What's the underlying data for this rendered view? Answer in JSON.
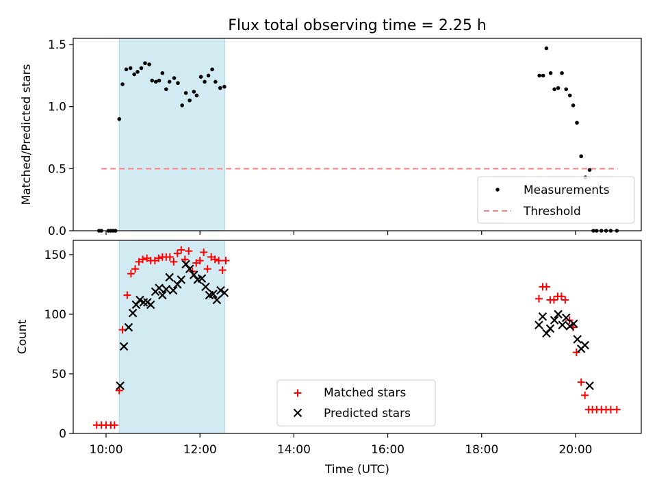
{
  "figure": {
    "title": "Flux total observing time = 2.25 h"
  },
  "colors": {
    "shade": "#add8e6",
    "threshold": "#ff7f7f",
    "matched": "#ff0000",
    "predicted": "#000000",
    "measurements": "#000000"
  },
  "chart_data": [
    {
      "type": "scatter",
      "ylabel": "Matched/Predicted stars",
      "xlabel": "",
      "ylim": [
        0,
        1.55
      ],
      "yticks": [
        0.0,
        0.5,
        1.0,
        1.5
      ],
      "ytick_labels": [
        "0.0",
        "0.5",
        "1.0",
        "1.5"
      ],
      "xlim": [
        9.3,
        21.4
      ],
      "shaded_interval": [
        10.28,
        12.53
      ],
      "legend": {
        "placement": "lower right",
        "entries": [
          "Measurements",
          "Threshold"
        ]
      },
      "threshold": {
        "name": "Threshold",
        "y": 0.5,
        "x": [
          9.9,
          20.9
        ]
      },
      "series": [
        {
          "name": "Measurements",
          "x": [
            9.85,
            9.9,
            10.05,
            10.1,
            10.15,
            10.2,
            10.28,
            10.35,
            10.43,
            10.52,
            10.6,
            10.67,
            10.75,
            10.83,
            10.92,
            10.98,
            11.06,
            11.13,
            11.2,
            11.28,
            11.35,
            11.45,
            11.53,
            11.62,
            11.7,
            11.78,
            11.87,
            11.93,
            12.02,
            12.1,
            12.18,
            12.26,
            12.33,
            12.43,
            12.52,
            19.23,
            19.31,
            19.38,
            19.47,
            19.55,
            19.63,
            19.71,
            19.8,
            19.88,
            19.95,
            20.03,
            20.12,
            20.21,
            20.3,
            20.38,
            20.45,
            20.55,
            20.65,
            20.75,
            20.88
          ],
          "y": [
            0.0,
            0.0,
            0.0,
            0.0,
            0.0,
            0.0,
            0.9,
            1.18,
            1.3,
            1.31,
            1.26,
            1.28,
            1.31,
            1.35,
            1.34,
            1.21,
            1.2,
            1.21,
            1.27,
            1.14,
            1.2,
            1.23,
            1.19,
            1.01,
            1.11,
            1.05,
            1.12,
            1.09,
            1.24,
            1.2,
            1.25,
            1.3,
            1.2,
            1.15,
            1.16,
            1.25,
            1.25,
            1.47,
            1.27,
            1.14,
            1.15,
            1.27,
            1.14,
            1.09,
            1.01,
            0.87,
            0.6,
            0.43,
            0.49,
            0.0,
            0.0,
            0.0,
            0.0,
            0.0,
            0.0
          ]
        }
      ]
    },
    {
      "type": "scatter",
      "xlabel": "Time (UTC)",
      "ylabel": "Count",
      "ylim": [
        0,
        162
      ],
      "yticks": [
        0,
        50,
        100,
        150
      ],
      "ytick_labels": [
        "0",
        "50",
        "100",
        "150"
      ],
      "xlim": [
        9.3,
        21.4
      ],
      "xticks": [
        10,
        12,
        14,
        16,
        18,
        20
      ],
      "xtick_labels": [
        "10:00",
        "12:00",
        "14:00",
        "16:00",
        "18:00",
        "20:00"
      ],
      "shaded_interval": [
        10.28,
        12.53
      ],
      "legend": {
        "placement": "lower center",
        "entries": [
          "Matched stars",
          "Predicted stars"
        ]
      },
      "series": [
        {
          "name": "Matched stars",
          "marker": "plus",
          "x": [
            9.8,
            9.9,
            10.0,
            10.1,
            10.18,
            10.28,
            10.35,
            10.45,
            10.53,
            10.62,
            10.7,
            10.78,
            10.87,
            10.95,
            11.04,
            11.12,
            11.2,
            11.28,
            11.36,
            11.44,
            11.52,
            11.6,
            11.68,
            11.76,
            11.84,
            11.92,
            12.0,
            12.08,
            12.16,
            12.24,
            12.32,
            12.4,
            12.48,
            12.55,
            19.22,
            19.3,
            19.38,
            19.46,
            19.54,
            19.62,
            19.7,
            19.78,
            19.87,
            19.95,
            20.02,
            20.12,
            20.2,
            20.28,
            20.36,
            20.45,
            20.55,
            20.65,
            20.75,
            20.88
          ],
          "y": [
            7,
            7,
            7,
            7,
            7,
            36,
            87,
            116,
            134,
            138,
            144,
            146,
            147,
            145,
            145,
            147,
            148,
            148,
            148,
            144,
            151,
            154,
            146,
            153,
            136,
            143,
            145,
            152,
            138,
            148,
            146,
            145,
            137,
            145,
            113,
            123,
            123,
            112,
            112,
            115,
            115,
            112,
            95,
            89,
            68,
            43,
            32,
            20,
            20,
            20,
            20,
            20,
            20,
            20
          ]
        },
        {
          "name": "Predicted stars",
          "marker": "x",
          "x": [
            10.3,
            10.38,
            10.48,
            10.57,
            10.64,
            10.72,
            10.8,
            10.88,
            10.95,
            11.05,
            11.13,
            11.2,
            11.28,
            11.35,
            11.43,
            11.52,
            11.6,
            11.7,
            11.78,
            11.87,
            11.95,
            12.04,
            12.12,
            12.2,
            12.28,
            12.36,
            12.44,
            12.52,
            19.22,
            19.3,
            19.38,
            19.46,
            19.55,
            19.63,
            19.72,
            19.8,
            19.88,
            19.96,
            20.04,
            20.12,
            20.2,
            20.3
          ],
          "y": [
            40,
            73,
            89,
            101,
            108,
            112,
            110,
            110,
            108,
            119,
            122,
            116,
            121,
            131,
            120,
            125,
            129,
            142,
            138,
            133,
            129,
            130,
            123,
            116,
            117,
            112,
            120,
            118,
            91,
            98,
            84,
            88,
            95,
            100,
            91,
            97,
            90,
            92,
            79,
            71,
            74,
            40
          ]
        }
      ]
    }
  ]
}
